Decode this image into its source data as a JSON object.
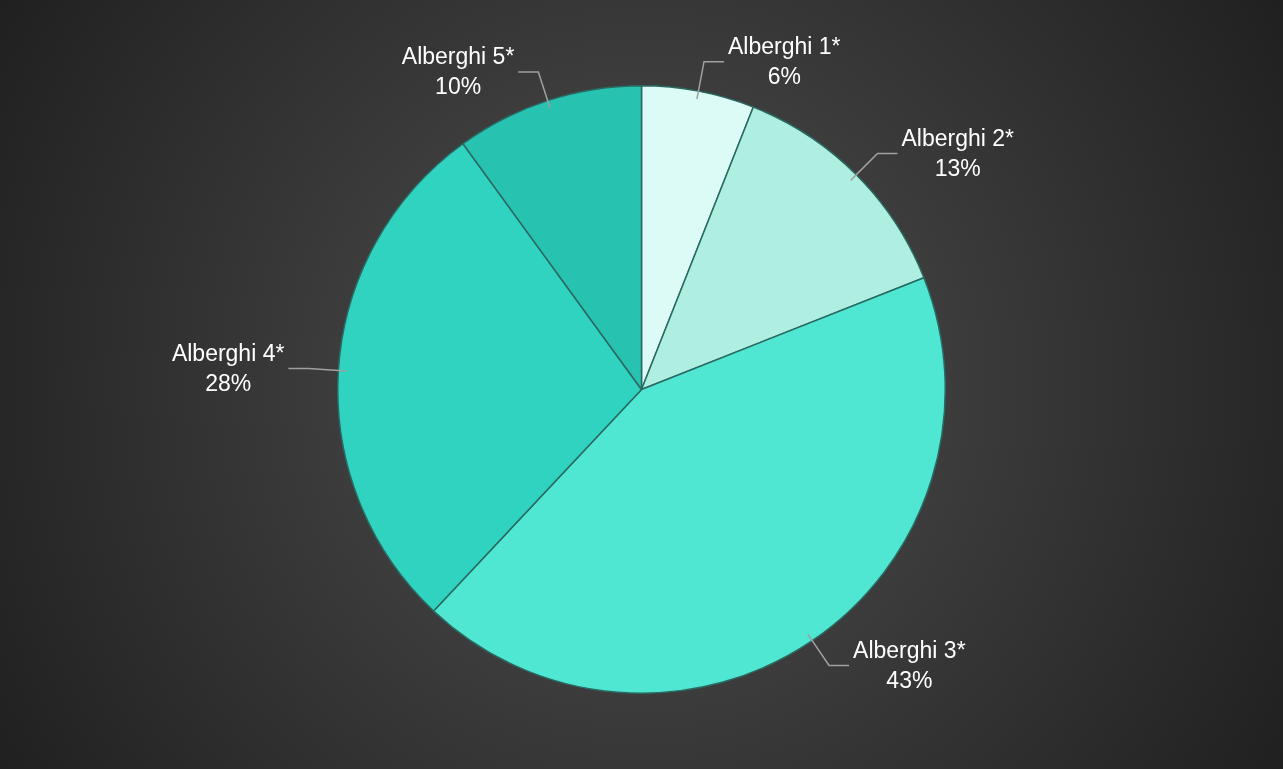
{
  "chart_data": {
    "type": "pie",
    "categories": [
      "Alberghi 1*",
      "Alberghi 2*",
      "Alberghi 3*",
      "Alberghi 4*",
      "Alberghi 5*"
    ],
    "values": [
      6,
      13,
      43,
      28,
      10
    ],
    "colors": [
      "#dcfaf6",
      "#aeefe2",
      "#4fe6d2",
      "#2fd3bf",
      "#27c2b0"
    ],
    "value_labels": [
      "6%",
      "13%",
      "43%",
      "28%",
      "10%"
    ],
    "legend": false
  }
}
